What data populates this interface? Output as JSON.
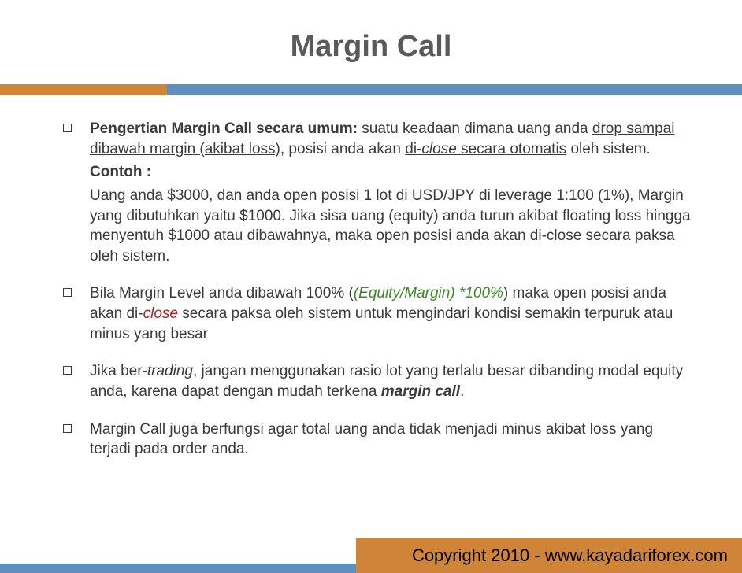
{
  "title": "Margin Call",
  "colors": {
    "accent_orange": "#d08438",
    "accent_blue": "#5f8fbf",
    "title_color": "#5a5a5a",
    "body_color": "#3a3a3a",
    "green": "#3a8a28",
    "red": "#b02020",
    "background": "#ffffff"
  },
  "typography": {
    "title_fontsize": 38,
    "body_fontsize": 19,
    "footer_fontsize": 22,
    "body_family": "Century Gothic",
    "footer_family": "Arial"
  },
  "bullets": [
    {
      "segments": [
        {
          "text": "Pengertian Margin Call secara umum: ",
          "bold": true
        },
        {
          "text": "suatu keadaan dimana uang anda "
        },
        {
          "text": "drop sampai dibawah margin (akibat loss)",
          "underline": true
        },
        {
          "text": ", posisi anda akan "
        },
        {
          "text": "di-",
          "underline": true
        },
        {
          "text": "close",
          "underline": true,
          "italic": true
        },
        {
          "text": " secara otomatis",
          "underline": true
        },
        {
          "text": " oleh sistem."
        }
      ],
      "extra": [
        {
          "segments": [
            {
              "text": "Contoh :",
              "bold": true
            }
          ]
        },
        {
          "segments": [
            {
              "text": "Uang anda $3000, dan anda open posisi 1 lot di USD/JPY di leverage 1:100 (1%), Margin yang dibutuhkan yaitu $1000. Jika sisa uang (equity) anda turun akibat floating loss hingga menyentuh $1000 atau dibawahnya, maka open posisi anda akan di-close secara paksa oleh sistem."
            }
          ]
        }
      ]
    },
    {
      "segments": [
        {
          "text": "Bila Margin Level anda dibawah 100% ("
        },
        {
          "text": "(Equity/Margin) *100%",
          "green": true
        },
        {
          "text": ") maka open posisi anda akan di-"
        },
        {
          "text": "close",
          "red_italic": true
        },
        {
          "text": " secara paksa oleh sistem untuk mengindari kondisi semakin terpuruk atau minus yang besar"
        }
      ]
    },
    {
      "segments": [
        {
          "text": "Jika ber-"
        },
        {
          "text": "trading",
          "italic": true
        },
        {
          "text": ", jangan menggunakan rasio lot yang terlalu besar dibanding modal equity anda, karena dapat dengan mudah terkena "
        },
        {
          "text": "margin call",
          "bold": true,
          "italic": true
        },
        {
          "text": "."
        }
      ]
    },
    {
      "segments": [
        {
          "text": "Margin Call juga berfungsi agar total uang anda tidak menjadi minus akibat loss yang terjadi pada order anda."
        }
      ]
    }
  ],
  "footer": "Copyright 2010 - www.kayadariforex.com"
}
